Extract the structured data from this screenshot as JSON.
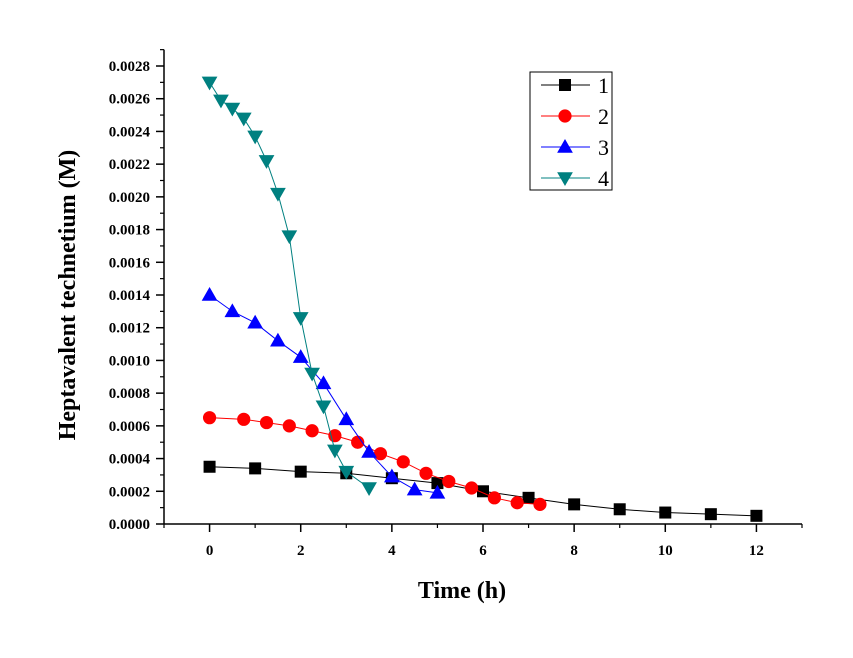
{
  "chart_data": {
    "type": "line",
    "xlabel": "Time (h)",
    "ylabel": "Heptavalent technetium (M)",
    "xlim": [
      -1,
      13
    ],
    "ylim": [
      0,
      0.0029
    ],
    "x_ticks": [
      0,
      2,
      4,
      6,
      8,
      10,
      12
    ],
    "x_tick_labels": [
      "0",
      "2",
      "4",
      "6",
      "8",
      "10",
      "12"
    ],
    "y_ticks": [
      0,
      0.0002,
      0.0004,
      0.0006,
      0.0008,
      0.001,
      0.0012,
      0.0014,
      0.0016,
      0.0018,
      0.002,
      0.0022,
      0.0024,
      0.0026,
      0.0028
    ],
    "y_tick_labels": [
      "0.0000",
      "0.0002",
      "0.0004",
      "0.0006",
      "0.0008",
      "0.0010",
      "0.0012",
      "0.0014",
      "0.0016",
      "0.0018",
      "0.0020",
      "0.0022",
      "0.0024",
      "0.0026",
      "0.0028"
    ],
    "grid": false,
    "legend_position": "top-right",
    "series": [
      {
        "name": "1",
        "color": "#000000",
        "marker": "square",
        "x": [
          0,
          1,
          2,
          3,
          4,
          5,
          6,
          7,
          8,
          9,
          10,
          11,
          12
        ],
        "y": [
          0.00035,
          0.00034,
          0.00032,
          0.00031,
          0.00028,
          0.00025,
          0.0002,
          0.00016,
          0.00012,
          9e-05,
          7e-05,
          6e-05,
          5e-05
        ]
      },
      {
        "name": "2",
        "color": "#ff0000",
        "marker": "circle",
        "x": [
          0,
          0.75,
          1.25,
          1.75,
          2.25,
          2.75,
          3.25,
          3.75,
          4.25,
          4.75,
          5.25,
          5.75,
          6.25,
          6.75,
          7.25
        ],
        "y": [
          0.00065,
          0.00064,
          0.00062,
          0.0006,
          0.00057,
          0.00054,
          0.0005,
          0.00043,
          0.00038,
          0.00031,
          0.00026,
          0.00022,
          0.00016,
          0.00013,
          0.00012
        ]
      },
      {
        "name": "3",
        "color": "#0000ff",
        "marker": "triangle-up",
        "x": [
          0,
          0.5,
          1,
          1.5,
          2,
          2.5,
          3,
          3.5,
          4,
          4.5,
          5
        ],
        "y": [
          0.0014,
          0.0013,
          0.00123,
          0.00112,
          0.00102,
          0.00086,
          0.00064,
          0.00044,
          0.00029,
          0.00021,
          0.00019
        ]
      },
      {
        "name": "4",
        "color": "#008080",
        "marker": "triangle-down",
        "x": [
          0,
          0.25,
          0.5,
          0.75,
          1,
          1.25,
          1.5,
          1.75,
          2,
          2.25,
          2.5,
          2.75,
          3,
          3.5
        ],
        "y": [
          0.0027,
          0.00259,
          0.00254,
          0.00248,
          0.00237,
          0.00222,
          0.00202,
          0.00176,
          0.00126,
          0.00092,
          0.00072,
          0.00045,
          0.00032,
          0.00022
        ]
      }
    ]
  }
}
